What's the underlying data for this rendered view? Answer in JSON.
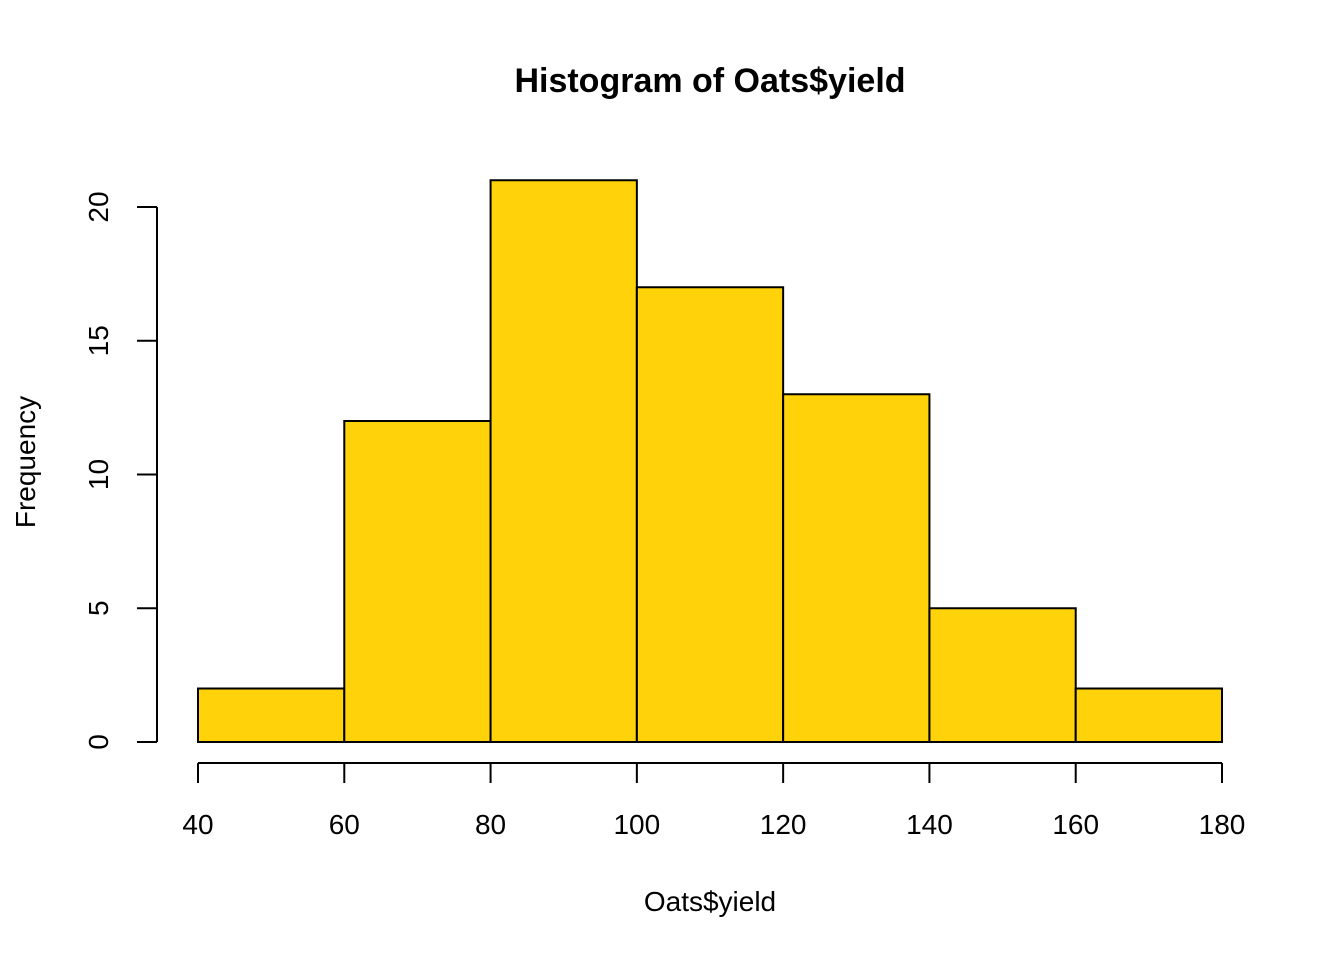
{
  "chart_data": {
    "type": "bar",
    "subtype": "histogram",
    "title": "Histogram of Oats$yield",
    "xlabel": "Oats$yield",
    "ylabel": "Frequency",
    "bins": [
      {
        "from": 40,
        "to": 60,
        "count": 2
      },
      {
        "from": 60,
        "to": 80,
        "count": 12
      },
      {
        "from": 80,
        "to": 100,
        "count": 21
      },
      {
        "from": 100,
        "to": 120,
        "count": 17
      },
      {
        "from": 120,
        "to": 140,
        "count": 13
      },
      {
        "from": 140,
        "to": 160,
        "count": 5
      },
      {
        "from": 160,
        "to": 180,
        "count": 2
      }
    ],
    "xlim": [
      40,
      180
    ],
    "ylim": [
      0,
      21
    ],
    "x_ticks": [
      40,
      60,
      80,
      100,
      120,
      140,
      160,
      180
    ],
    "x_tick_labels": [
      "40",
      "60",
      "80",
      "100",
      "120",
      "140",
      "160",
      "180"
    ],
    "y_ticks": [
      0,
      5,
      10,
      15,
      20
    ],
    "y_tick_labels": [
      "0",
      "5",
      "10",
      "15",
      "20"
    ],
    "bar_color": "#FFD20A",
    "grid": false
  }
}
